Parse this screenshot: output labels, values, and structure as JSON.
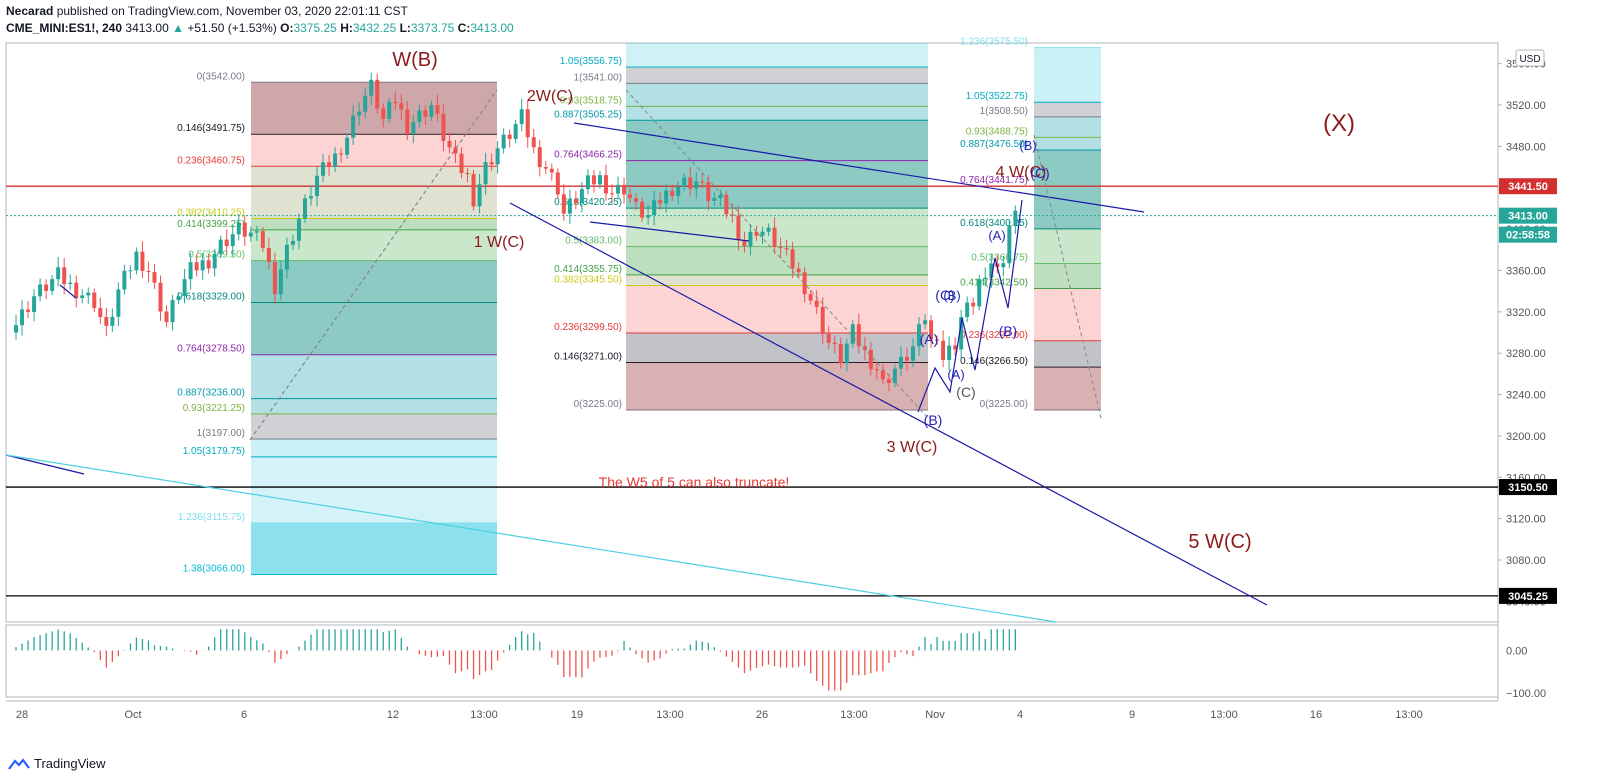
{
  "header": {
    "author": "Necarad",
    "published": " published on TradingView.com, November 03, 2020 22:01:11 CST",
    "symbol": "CME_MINI:ES1!, 240",
    "last": "3413.00",
    "change": "+51.50 (+1.53%)",
    "o_label": "O:",
    "o_val": "3375.25",
    "h_label": "H:",
    "h_val": "3432.25",
    "l_label": "L:",
    "l_val": "3373.75",
    "c_label": "C:",
    "c_val": "3413.00"
  },
  "footer": {
    "brand": "TradingView"
  },
  "colors": {
    "up": "#26a69a",
    "down": "#ef5350",
    "grid": "#f0f3fa",
    "trend": "#1a1aa6",
    "cyan": "#4dd0e1",
    "red_line": "#d32f2f",
    "wave": "#8b1a1a",
    "abc": "#2424b8"
  },
  "chart_data": {
    "type": "candlestick",
    "currency": "USD",
    "ylim": [
      3020,
      3580
    ],
    "y_ticks": [
      "3560.00",
      "3520.00",
      "3480.00",
      "3440.00",
      "3400.00",
      "3360.00",
      "3320.00",
      "3280.00",
      "3240.00",
      "3200.00",
      "3160.00",
      "3120.00",
      "3080.00",
      "3040.00"
    ],
    "x_ticks": [
      "28",
      "Oct",
      "6",
      "12",
      "13:00",
      "19",
      "13:00",
      "26",
      "13:00",
      "Nov",
      "4",
      "9",
      "13:00",
      "16",
      "13:00"
    ],
    "price_tags": [
      {
        "text": "3441.50",
        "value": 3441.5,
        "color": "#d32f2f"
      },
      {
        "text": "3413.00",
        "value": 3413,
        "color": "#26a69a"
      },
      {
        "text": "02:58:58",
        "value": 3399,
        "color": "#26a69a"
      },
      {
        "text": "3150.50",
        "value": 3150.5,
        "color": "#000000"
      },
      {
        "text": "3045.25",
        "value": 3045.25,
        "color": "#000000"
      }
    ],
    "horizontal_lines": [
      3441.5,
      3413,
      3150.5,
      3045.25
    ],
    "price_path": [
      [
        0,
        3300
      ],
      [
        4,
        3335
      ],
      [
        8,
        3355
      ],
      [
        10,
        3345
      ],
      [
        14,
        3330
      ],
      [
        16,
        3300
      ],
      [
        18,
        3340
      ],
      [
        21,
        3375
      ],
      [
        23,
        3360
      ],
      [
        26,
        3310
      ],
      [
        28,
        3340
      ],
      [
        30,
        3360
      ],
      [
        33,
        3370
      ],
      [
        35,
        3385
      ],
      [
        38,
        3400
      ],
      [
        40,
        3395
      ],
      [
        42,
        3385
      ],
      [
        44,
        3345
      ],
      [
        46,
        3380
      ],
      [
        48,
        3410
      ],
      [
        51,
        3450
      ],
      [
        54,
        3470
      ],
      [
        56,
        3490
      ],
      [
        58,
        3520
      ],
      [
        60,
        3538
      ],
      [
        62,
        3505
      ],
      [
        64,
        3525
      ],
      [
        66,
        3500
      ],
      [
        68,
        3510
      ],
      [
        70,
        3520
      ],
      [
        72,
        3490
      ],
      [
        74,
        3465
      ],
      [
        76,
        3450
      ],
      [
        77,
        3430
      ],
      [
        79,
        3460
      ],
      [
        81,
        3478
      ],
      [
        83,
        3492
      ],
      [
        85,
        3508
      ],
      [
        87,
        3476
      ],
      [
        89,
        3460
      ],
      [
        91,
        3440
      ],
      [
        92,
        3415
      ],
      [
        94,
        3430
      ],
      [
        96,
        3444
      ],
      [
        98,
        3449
      ],
      [
        100,
        3436
      ],
      [
        102,
        3440
      ],
      [
        104,
        3420
      ],
      [
        106,
        3412
      ],
      [
        108,
        3428
      ],
      [
        110,
        3440
      ],
      [
        112,
        3445
      ],
      [
        114,
        3446
      ],
      [
        116,
        3432
      ],
      [
        118,
        3425
      ],
      [
        120,
        3410
      ],
      [
        122,
        3385
      ],
      [
        124,
        3400
      ],
      [
        126,
        3395
      ],
      [
        128,
        3380
      ],
      [
        130,
        3365
      ],
      [
        132,
        3345
      ],
      [
        134,
        3320
      ],
      [
        136,
        3290
      ],
      [
        138,
        3275
      ],
      [
        140,
        3300
      ],
      [
        142,
        3280
      ],
      [
        144,
        3265
      ],
      [
        145,
        3250
      ],
      [
        147,
        3265
      ],
      [
        148,
        3270
      ],
      [
        150,
        3285
      ],
      [
        151,
        3300
      ],
      [
        152,
        3315
      ],
      [
        153,
        3290
      ],
      [
        154,
        3300
      ],
      [
        155,
        3275
      ],
      [
        157,
        3290
      ],
      [
        158,
        3315
      ],
      [
        160,
        3330
      ],
      [
        161,
        3350
      ],
      [
        162,
        3345
      ],
      [
        163,
        3370
      ],
      [
        164,
        3360
      ],
      [
        165,
        3375
      ],
      [
        166,
        3405
      ],
      [
        167,
        3413
      ]
    ],
    "oscillator": {
      "ylim": [
        -110,
        60
      ],
      "ticks": [
        "0.00",
        "−100.00"
      ]
    },
    "fib_blocks": [
      {
        "name": "left",
        "levels": [
          {
            "label": "0(3542.00)",
            "value": 3542,
            "color": "#787b86"
          },
          {
            "label": "0.146(3491.75)",
            "value": 3491.75,
            "color": "#131722"
          },
          {
            "label": "0.236(3460.75)",
            "value": 3460.75,
            "color": "#e53935"
          },
          {
            "label": "0.382(3410.25)",
            "value": 3410.25,
            "color": "#c9c917"
          },
          {
            "label": "0.414(3399.25)",
            "value": 3399.25,
            "color": "#43a047"
          },
          {
            "label": "0.5(3369.50)",
            "value": 3369.5,
            "color": "#66bb6a"
          },
          {
            "label": "0.618(3329.00)",
            "value": 3329,
            "color": "#00897b"
          },
          {
            "label": "0.764(3278.50)",
            "value": 3278.5,
            "color": "#8e24aa"
          },
          {
            "label": "0.887(3236.00)",
            "value": 3236,
            "color": "#0097a7"
          },
          {
            "label": "0.93(3221.25)",
            "value": 3221.25,
            "color": "#7cb342"
          },
          {
            "label": "1(3197.00)",
            "value": 3197,
            "color": "#787b86"
          },
          {
            "label": "1.05(3179.75)",
            "value": 3179.75,
            "color": "#00acc1"
          },
          {
            "label": "1.236(3115.75)",
            "value": 3115.75,
            "color": "#80deea"
          },
          {
            "label": "1.38(3066.00)",
            "value": 3066,
            "color": "#00bcd4"
          }
        ]
      },
      {
        "name": "middle",
        "levels": [
          {
            "label": "1.05(3556.75)",
            "value": 3556.75,
            "color": "#00acc1"
          },
          {
            "label": "1(3541.00)",
            "value": 3541,
            "color": "#787b86"
          },
          {
            "label": "0.93(3518.75)",
            "value": 3518.75,
            "color": "#7cb342"
          },
          {
            "label": "0.887(3505.25)",
            "value": 3505.25,
            "color": "#0097a7"
          },
          {
            "label": "0.764(3466.25)",
            "value": 3466.25,
            "color": "#8e24aa"
          },
          {
            "label": "0.618(3420.25)",
            "value": 3420.25,
            "color": "#00897b"
          },
          {
            "label": "0.5(3383.00)",
            "value": 3383,
            "color": "#66bb6a"
          },
          {
            "label": "0.414(3355.75)",
            "value": 3355.75,
            "color": "#43a047"
          },
          {
            "label": "0.382(3345.50)",
            "value": 3345.5,
            "color": "#c9c917"
          },
          {
            "label": "0.236(3299.50)",
            "value": 3299.5,
            "color": "#e53935"
          },
          {
            "label": "0.146(3271.00)",
            "value": 3271,
            "color": "#131722"
          },
          {
            "label": "0(3225.00)",
            "value": 3225,
            "color": "#787b86"
          }
        ]
      },
      {
        "name": "right",
        "levels": [
          {
            "label": "1.236(3575.50)",
            "value": 3575.5,
            "color": "#80deea"
          },
          {
            "label": "1.05(3522.75)",
            "value": 3522.75,
            "color": "#00acc1"
          },
          {
            "label": "1(3508.50)",
            "value": 3508.5,
            "color": "#787b86"
          },
          {
            "label": "0.93(3488.75)",
            "value": 3488.75,
            "color": "#7cb342"
          },
          {
            "label": "0.887(3476.50)",
            "value": 3476.5,
            "color": "#0097a7"
          },
          {
            "label": "0.764(3441.75)",
            "value": 3441.75,
            "color": "#8e24aa"
          },
          {
            "label": "0.618(3400.25)",
            "value": 3400.25,
            "color": "#00897b"
          },
          {
            "label": "0.5(3366.75)",
            "value": 3366.75,
            "color": "#66bb6a"
          },
          {
            "label": "0.414(3342.50)",
            "value": 3342.5,
            "color": "#43a047"
          },
          {
            "label": "0.236(3292.00)",
            "value": 3292,
            "color": "#e53935"
          },
          {
            "label": "0.146(3266.50)",
            "value": 3266.5,
            "color": "#131722"
          },
          {
            "label": "0(3225.00)",
            "value": 3225,
            "color": "#787b86"
          }
        ]
      }
    ],
    "annotations": [
      {
        "text": "W(B)",
        "role": "wave"
      },
      {
        "text": "2W(C)",
        "role": "wave"
      },
      {
        "text": "1 W(C)",
        "role": "wave"
      },
      {
        "text": "3 W(C)",
        "role": "wave"
      },
      {
        "text": "4 W(C)",
        "role": "wave"
      },
      {
        "text": "5 W(C)",
        "role": "wave"
      },
      {
        "text": "(X)",
        "role": "wave"
      },
      {
        "text": "The W5 of 5 can also truncate!",
        "role": "note"
      },
      {
        "text": "(A)",
        "role": "abc"
      },
      {
        "text": "(B)",
        "role": "abc"
      },
      {
        "text": "(C)",
        "role": "abc"
      },
      {
        "text": "(B)",
        "role": "abc2"
      },
      {
        "text": "(A)",
        "role": "abc2"
      },
      {
        "text": "(B)",
        "role": "abc2"
      },
      {
        "text": "(A)",
        "role": "abc2"
      },
      {
        "text": "(C)",
        "role": "abc2"
      },
      {
        "text": "(B)",
        "role": "abc2"
      },
      {
        "text": "(C)",
        "role": "abc2"
      }
    ]
  }
}
